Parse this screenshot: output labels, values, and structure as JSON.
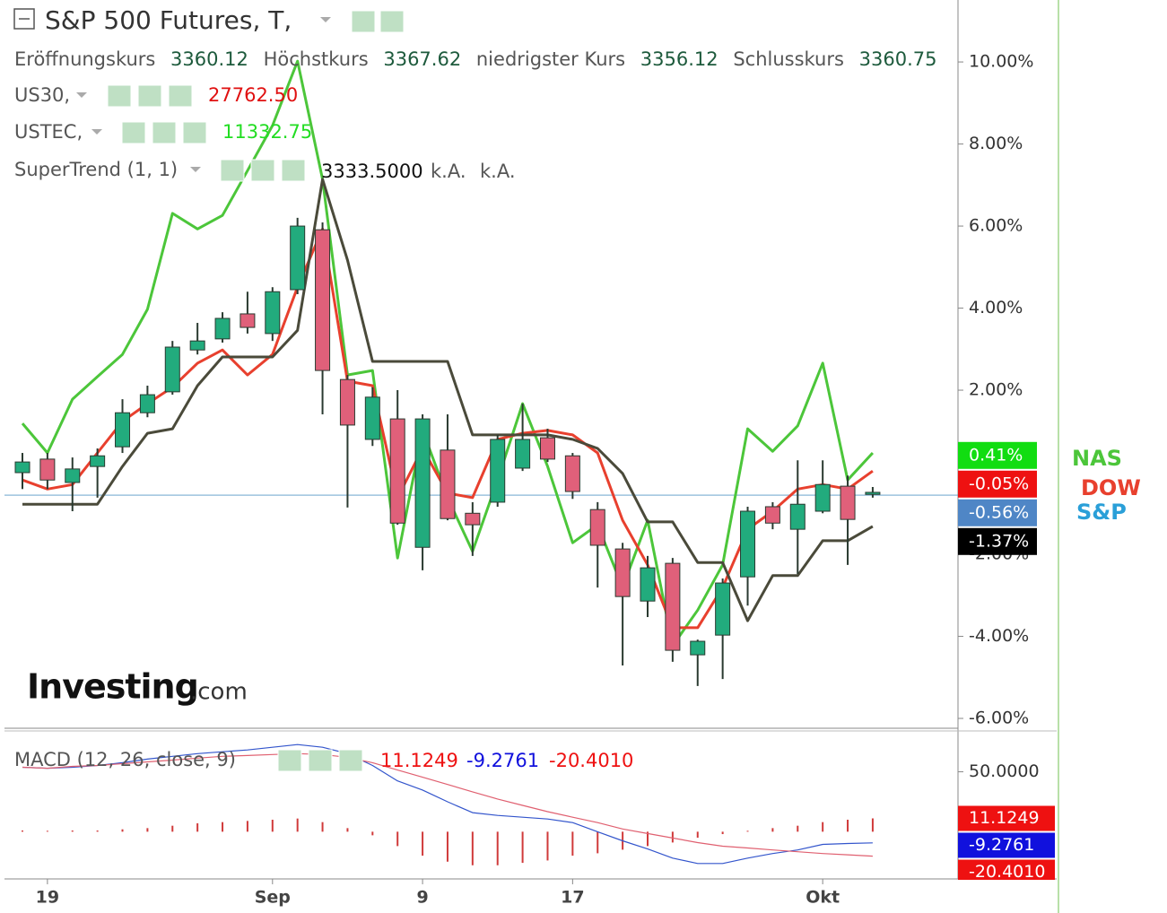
{
  "header": {
    "symbol": "S&P 500 Futures, T,",
    "ohlc": [
      {
        "name": "Eröffnungskurs",
        "value": "3360.12"
      },
      {
        "name": "Höchstkurs",
        "value": "3367.62"
      },
      {
        "name": "niedrigster Kurs",
        "value": "3356.12"
      },
      {
        "name": "Schlusskurs",
        "value": "3360.75"
      }
    ],
    "us30": {
      "name": "US30,",
      "value": "27762.50"
    },
    "ustec": {
      "name": "USTEC,",
      "value": "11332.75"
    },
    "supertrend": {
      "value": "3333.5000",
      "extra": [
        "k.A.",
        "k.A."
      ]
    }
  },
  "logo": {
    "brand": "Investing",
    "suffix": ".com"
  },
  "chart_data": [
    {
      "type": "candlestick",
      "candle_name": "S&P",
      "candle_legend_color": "#2a9fd8",
      "up_color": "#22ab7d",
      "down_color": "#e0607a",
      "categories": [
        null,
        "19",
        null,
        null,
        null,
        null,
        null,
        null,
        null,
        null,
        "Sep",
        null,
        null,
        null,
        null,
        null,
        "9",
        null,
        null,
        null,
        null,
        null,
        "17",
        null,
        null,
        null,
        null,
        null,
        null,
        null,
        null,
        null,
        "Okt",
        null,
        null
      ],
      "open": [
        -0.01,
        0.32,
        -0.25,
        0.14,
        0.62,
        1.45,
        1.96,
        2.98,
        3.25,
        3.86,
        3.38,
        4.45,
        5.91,
        2.26,
        0.8,
        1.3,
        -1.83,
        0.54,
        -1.0,
        -0.73,
        0.1,
        0.84,
        0.4,
        -0.91,
        -1.87,
        -3.14,
        -2.22,
        -4.45,
        -3.97,
        -2.55,
        -0.84,
        -1.39,
        -0.95,
        -0.34,
        -0.54
      ],
      "high": [
        0.47,
        0.47,
        0.36,
        0.58,
        1.78,
        2.11,
        3.2,
        3.64,
        3.9,
        4.4,
        4.51,
        6.2,
        6.09,
        2.37,
        2.07,
        2.0,
        1.41,
        1.41,
        -0.73,
        0.91,
        1.67,
        1.06,
        0.47,
        -0.73,
        -1.72,
        -2.04,
        -2.09,
        -4.08,
        -2.59,
        -0.84,
        -0.73,
        0.29,
        0.29,
        -0.08,
        -0.36
      ],
      "low": [
        -0.41,
        -0.41,
        -0.95,
        -0.62,
        0.47,
        1.34,
        1.89,
        2.87,
        3.16,
        3.38,
        3.2,
        4.34,
        1.41,
        -0.86,
        0.64,
        -1.28,
        -2.39,
        -1.17,
        -2.04,
        -0.84,
        0.03,
        0.25,
        -0.65,
        -2.81,
        -4.71,
        -3.53,
        -4.62,
        -5.21,
        -5.04,
        -3.25,
        -1.39,
        -2.48,
        -1.0,
        -2.26,
        -0.62
      ],
      "close": [
        0.25,
        -0.19,
        0.08,
        0.4,
        1.45,
        1.89,
        3.05,
        3.2,
        3.75,
        3.53,
        4.4,
        6.0,
        2.48,
        1.15,
        1.83,
        -1.24,
        1.3,
        -1.13,
        -1.28,
        0.8,
        0.8,
        0.32,
        -0.47,
        -1.78,
        -3.03,
        -2.33,
        -4.34,
        -4.12,
        -2.7,
        -0.95,
        -1.24,
        -0.78,
        -0.3,
        -1.15,
        -0.49
      ],
      "series": [
        {
          "name": "NAS",
          "color": "#4cc63a",
          "values": [
            1.19,
            0.47,
            1.78,
            2.33,
            2.87,
            3.97,
            6.31,
            5.93,
            6.26,
            7.35,
            8.45,
            10.02,
            7.14,
            2.37,
            2.48,
            -2.09,
            1.02,
            -0.62,
            -1.93,
            -0.19,
            1.67,
            0.14,
            -1.72,
            -1.28,
            -2.81,
            -1.17,
            -4.23,
            -3.36,
            -2.26,
            1.06,
            0.51,
            1.13,
            2.66,
            -0.19,
            0.47
          ]
        },
        {
          "name": "DOW",
          "color": "#e8402e",
          "values": [
            -0.19,
            -0.41,
            -0.3,
            0.47,
            1.24,
            1.67,
            2.07,
            2.66,
            2.98,
            2.37,
            2.87,
            4.51,
            5.93,
            2.22,
            2.11,
            -0.62,
            0.58,
            -0.51,
            -0.62,
            0.8,
            0.95,
            1.02,
            0.91,
            0.47,
            -1.17,
            -2.26,
            -3.79,
            -3.79,
            -2.81,
            -1.39,
            -0.95,
            -0.41,
            -0.3,
            -0.41,
            0.03
          ]
        },
        {
          "name": "SuperTrend (1, 1)",
          "color": "#4a4a3a",
          "values": [
            -0.78,
            -0.78,
            -0.78,
            -0.78,
            0.14,
            0.95,
            1.06,
            2.11,
            2.81,
            2.81,
            2.81,
            3.46,
            7.14,
            5.17,
            2.7,
            2.7,
            2.7,
            2.7,
            0.91,
            0.91,
            0.91,
            0.91,
            0.8,
            0.58,
            -0.03,
            -1.21,
            -1.21,
            -2.2,
            -2.2,
            -3.62,
            -2.52,
            -2.52,
            -1.67,
            -1.67,
            -1.32
          ]
        }
      ],
      "last_price": -0.56,
      "last_price_color": "#9cc3de",
      "price_labels": [
        {
          "value": 0.41,
          "label": "0.41%",
          "color": "#11dd11"
        },
        {
          "value": -0.05,
          "label": "-0.05%",
          "color": "#ee1111"
        },
        {
          "value": -0.56,
          "label": "-0.56%",
          "color": "#4f86c6"
        },
        {
          "value": -1.37,
          "label": "-1.37%",
          "color": "#000000"
        }
      ],
      "ylim": [
        -6.24,
        11.51
      ],
      "yticks": [
        {
          "value": 10,
          "label": "10.00%"
        },
        {
          "value": 8,
          "label": "8.00%"
        },
        {
          "value": 6,
          "label": "6.00%"
        },
        {
          "value": 4,
          "label": "4.00%"
        },
        {
          "value": 2,
          "label": "2.00%"
        },
        {
          "value": -2,
          "label": "-2.00%"
        },
        {
          "value": -4,
          "label": "-4.00%"
        },
        {
          "value": -6,
          "label": "-6.00%"
        }
      ],
      "grid": false
    },
    {
      "type": "macd",
      "title": "MACD (12, 26, close, 9)",
      "series": [
        {
          "color": "#d03a3a",
          "kind": "histogram",
          "values": [
            1,
            0,
            1,
            1,
            2,
            3,
            5,
            7,
            8,
            9,
            10,
            11,
            8,
            3,
            -3,
            -12,
            -20,
            -25,
            -28,
            -28,
            -26,
            -24,
            -20,
            -18,
            -15,
            -12,
            -9,
            -5,
            -2,
            0,
            3,
            5,
            8,
            10,
            11.1249
          ]
        },
        {
          "color": "#3355cc",
          "kind": "line",
          "values": [
            53.8,
            53.0,
            53.8,
            55.3,
            57.6,
            60.6,
            62.9,
            65.2,
            66.7,
            68.2,
            70.5,
            72.7,
            70.5,
            65.2,
            55.3,
            42.4,
            34.8,
            25.0,
            15.9,
            13.6,
            12.1,
            10.6,
            7.6,
            0,
            -7.6,
            -14.4,
            -22.0,
            -26.5,
            -26.5,
            -22.0,
            -18.2,
            -15.2,
            -10.6,
            -9.8,
            -9.2761
          ]
        },
        {
          "color": "#e06070",
          "kind": "line",
          "values": [
            53.8,
            53.0,
            54.5,
            55.3,
            56.8,
            58.3,
            59.8,
            61.4,
            62.9,
            63.6,
            64.4,
            65.2,
            64.4,
            62.1,
            57.6,
            51.5,
            45.5,
            39.4,
            33.3,
            27.3,
            22.0,
            16.7,
            12.1,
            7.6,
            2.3,
            -1.5,
            -5.3,
            -9.1,
            -12.1,
            -13.6,
            -15.2,
            -16.7,
            -18.2,
            -19.3,
            -20.401
          ]
        }
      ],
      "readouts": [
        {
          "value": 11.1249,
          "label": "11.1249",
          "color": "#ee1111"
        },
        {
          "value": -9.2761,
          "label": "-9.2761",
          "color": "#1111dd"
        },
        {
          "value": -20.401,
          "label": "-20.4010",
          "color": "#ee1111"
        }
      ],
      "ylim": [
        -39.4,
        84.1
      ],
      "yticks": [
        {
          "value": 50,
          "label": "50.0000"
        }
      ],
      "grid": false
    }
  ]
}
